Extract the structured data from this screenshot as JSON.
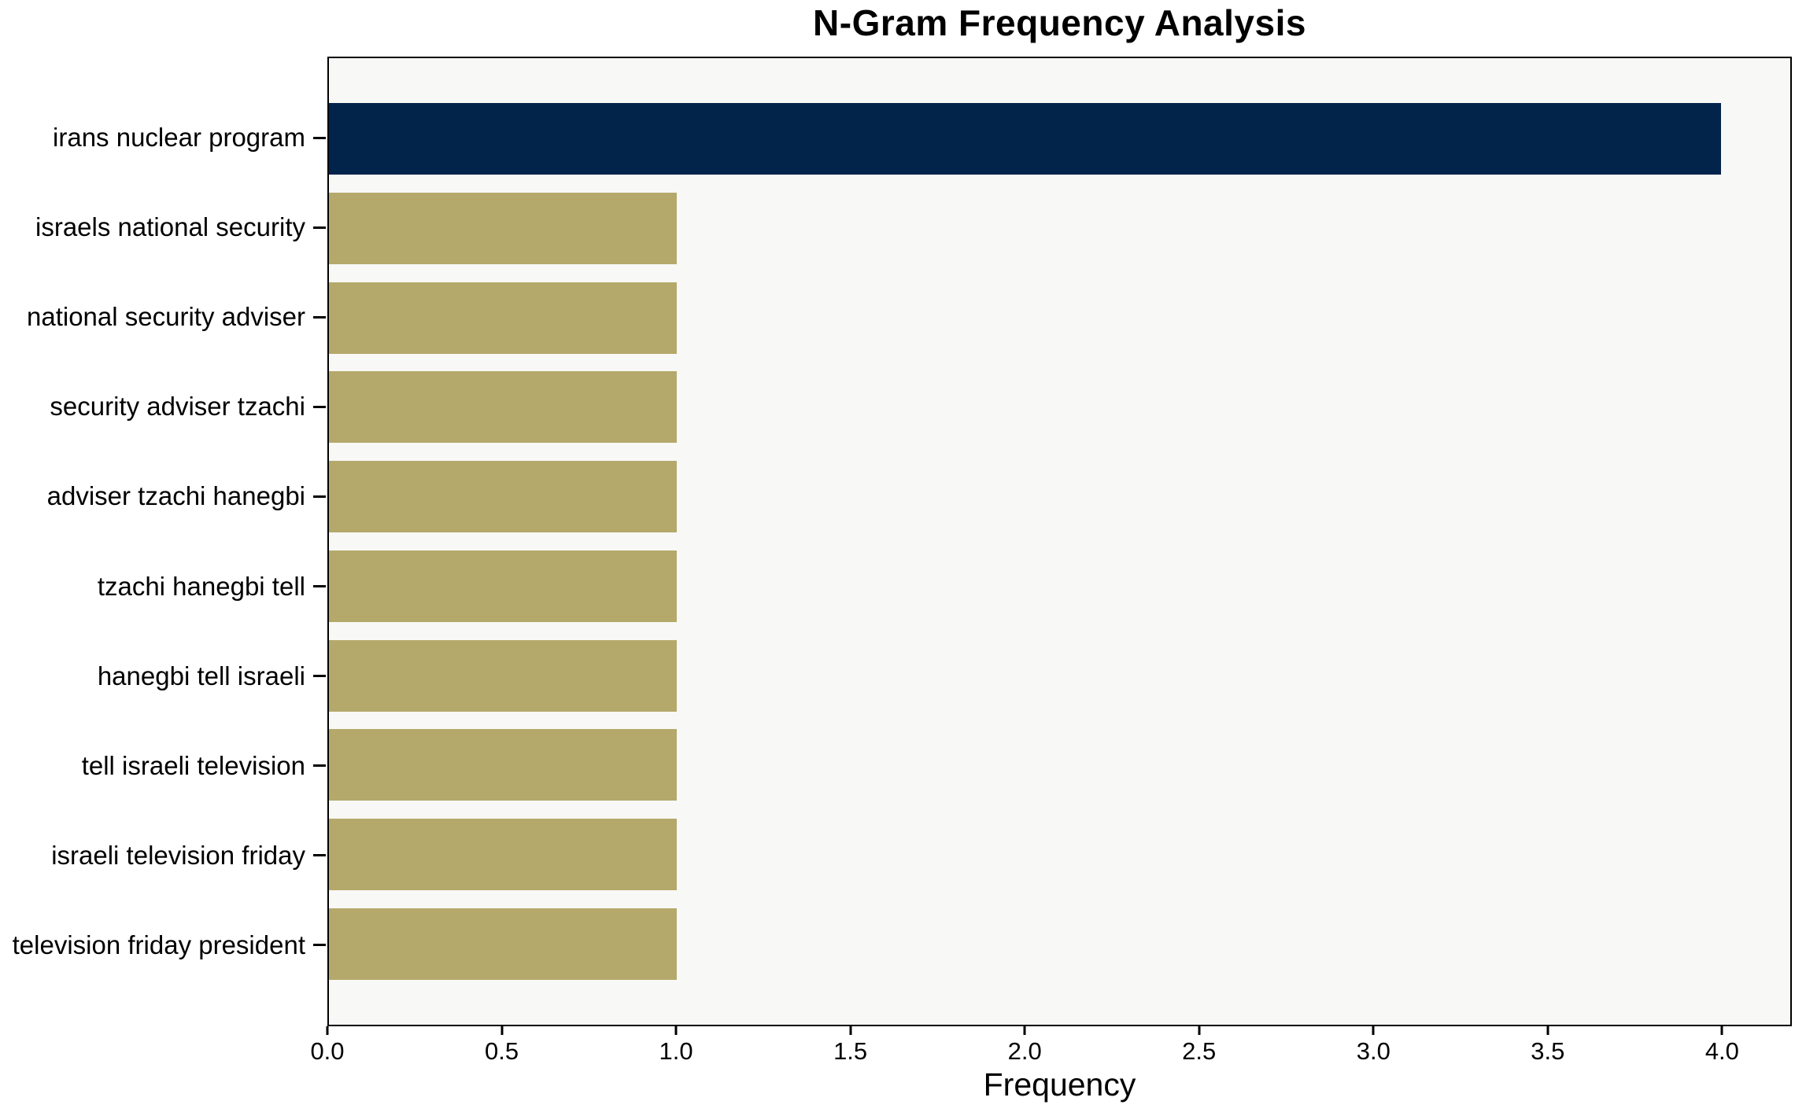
{
  "chart_data": {
    "type": "bar",
    "orientation": "horizontal",
    "title": "N-Gram Frequency Analysis",
    "xlabel": "Frequency",
    "ylabel": "",
    "categories": [
      "irans nuclear program",
      "israels national security",
      "national security adviser",
      "security adviser tzachi",
      "adviser tzachi hanegbi",
      "tzachi hanegbi tell",
      "hanegbi tell israeli",
      "tell israeli television",
      "israeli television friday",
      "television friday president"
    ],
    "values": [
      4,
      1,
      1,
      1,
      1,
      1,
      1,
      1,
      1,
      1
    ],
    "bar_colors": [
      "#02234a",
      "#b4a96a",
      "#b4a96a",
      "#b4a96a",
      "#b4a96a",
      "#b4a96a",
      "#b4a96a",
      "#b4a96a",
      "#b4a96a",
      "#b4a96a"
    ],
    "xlim": [
      0,
      4.2
    ],
    "xticks": [
      "0.0",
      "0.5",
      "1.0",
      "1.5",
      "2.0",
      "2.5",
      "3.0",
      "3.5",
      "4.0"
    ],
    "grid": false,
    "legend": null,
    "colors": {
      "highlight_bar": "#02234a",
      "default_bar": "#b4a96a",
      "plot_background": "#f8f8f6",
      "figure_background": "#ffffff",
      "spine": "#000000",
      "text": "#000000"
    }
  }
}
